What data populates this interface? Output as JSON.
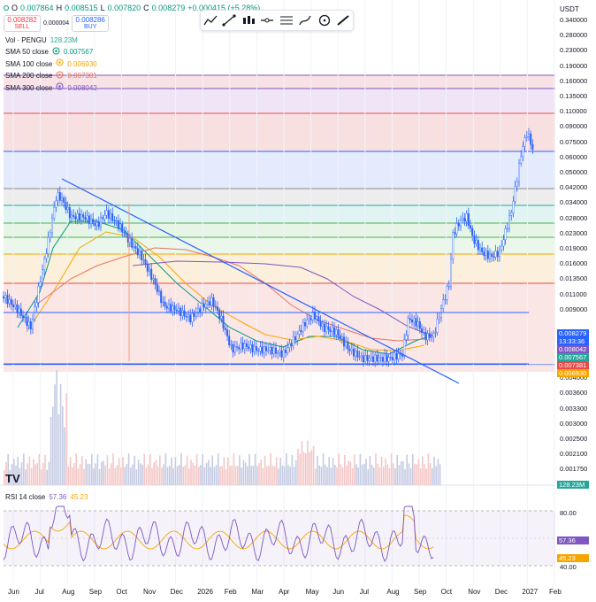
{
  "header": {
    "ohlc": {
      "o_label": "O",
      "o": "0.007864",
      "h_label": "H",
      "h": "0.008515",
      "l_label": "L",
      "l": "0.007820",
      "c_label": "C",
      "c": "0.008279",
      "change": "+0.000415 (+5.28%)"
    },
    "sell_price": "0.008282",
    "sell_label": "SELL",
    "spread": "0.000004",
    "buy_price": "0.008286",
    "buy_label": "BUY"
  },
  "legend": {
    "vol_label": "Vol · PENGU",
    "vol_value": "128.23M",
    "smas": [
      {
        "label": "SMA 50 close",
        "value": "0.007567",
        "color": "#089981"
      },
      {
        "label": "SMA 100 close",
        "value": "0.006930",
        "color": "#f7a600"
      },
      {
        "label": "SMA 200 close",
        "value": "0.007381",
        "color": "#e8745f"
      },
      {
        "label": "SMA 300 close",
        "value": "0.008042",
        "color": "#7e57c2"
      }
    ]
  },
  "toolbar": {
    "tools": [
      "trend-line-tool",
      "ray-tool",
      "candles-tool",
      "horizontal-line-tool",
      "text-lines-tool",
      "brush-tool",
      "circle-tool",
      "pen-tool"
    ]
  },
  "axis": {
    "currency": "USDT",
    "price_labels": [
      "0.340000",
      "0.280000",
      "0.230000",
      "0.190000",
      "0.160000",
      "0.135000",
      "0.110000",
      "0.090000",
      "0.075000",
      "0.060000",
      "0.050000",
      "0.042000",
      "0.034000",
      "0.028000",
      "0.023000",
      "0.019000",
      "0.016000",
      "0.013500",
      "0.011000",
      "0.009000",
      "0.005000",
      "0.004500",
      "0.004000",
      "0.003600",
      "0.003300",
      "0.003000",
      "0.002500",
      "0.002100",
      "0.001750",
      "0.001470"
    ],
    "tags": [
      {
        "text": "0.008279",
        "color": "#2962ff"
      },
      {
        "text": "13:33:36",
        "color": "#2962ff"
      },
      {
        "text": "0.008042",
        "color": "#7e57c2"
      },
      {
        "text": "0.007567",
        "color": "#26a69a"
      },
      {
        "text": "0.007381",
        "color": "#e84a4a"
      },
      {
        "text": "0.006930",
        "color": "#f7a600"
      },
      {
        "text": "128.23M",
        "color": "#26a69a"
      }
    ],
    "x_labels": [
      "Jun",
      "Jul",
      "Aug",
      "Sep",
      "Oct",
      "Nov",
      "Dec",
      "2026",
      "Feb",
      "Mar",
      "Apr",
      "May",
      "Jun",
      "Jul",
      "Aug",
      "Sep",
      "Oct",
      "Nov",
      "Dec",
      "2027",
      "Feb"
    ]
  },
  "rsi": {
    "label": "RSI 14 close",
    "value": "57.36",
    "ma_value": "45.23",
    "levels": [
      "80.00",
      "40.00"
    ],
    "value_color": "#7e57c2",
    "ma_color": "#f7a600"
  },
  "fib_colors": [
    "#f6d8dd",
    "#eadcf3",
    "#f7d6d6",
    "#dbe4fb",
    "#e7e7e7",
    "#d6f0ef",
    "#def2de",
    "#e3f4e3",
    "#fbe9cf",
    "#f9dddd"
  ]
}
